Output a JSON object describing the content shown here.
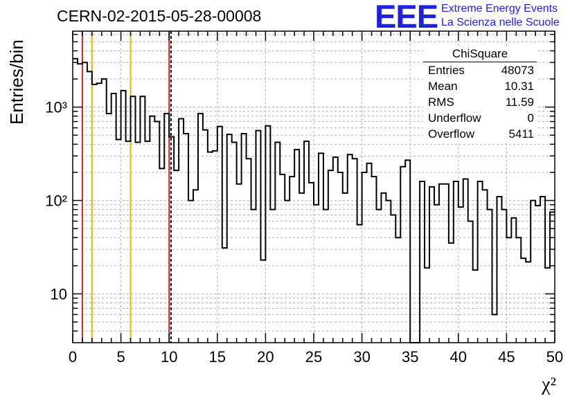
{
  "header": {
    "title": "CERN-02-2015-05-28-00008",
    "logo_text": "EEE",
    "logo_line1": "Extreme Energy Events",
    "logo_line2": "La Scienza nelle Scuole"
  },
  "stats_box": {
    "title": "ChiSquare",
    "rows": [
      {
        "label": "Entries",
        "value": "48073"
      },
      {
        "label": "Mean",
        "value": "10.31"
      },
      {
        "label": "RMS",
        "value": "11.59"
      },
      {
        "label": "Underflow",
        "value": "0"
      },
      {
        "label": "Overflow",
        "value": "5411"
      }
    ]
  },
  "colors": {
    "line": "#000000",
    "red_marker": "#e0201c",
    "orange_marker": "#f0b400",
    "grid": "#b0b0b0"
  },
  "chart_data": {
    "type": "histogram",
    "title": "CERN-02-2015-05-28-00008",
    "xlabel": "χ²",
    "ylabel": "Entries/bin",
    "yscale": "log",
    "xlim": [
      0,
      50
    ],
    "ylim": [
      3,
      6500
    ],
    "bin_width": 0.5,
    "bin_start": 0,
    "x_ticks": [
      0,
      5,
      10,
      15,
      20,
      25,
      30,
      35,
      40,
      45,
      50
    ],
    "y_tick_labels": [
      {
        "value": 10,
        "label": "10"
      },
      {
        "value": 100,
        "label": "10²"
      },
      {
        "value": 1000,
        "label": "10³"
      }
    ],
    "vertical_markers": [
      {
        "x": 1,
        "color": "red",
        "style": "solid"
      },
      {
        "x": 2,
        "color": "orange",
        "style": "solid"
      },
      {
        "x": 6,
        "color": "orange",
        "style": "solid"
      },
      {
        "x": 10,
        "color": "red",
        "style": "solid"
      },
      {
        "x": 10.2,
        "color": "black",
        "style": "dashed"
      }
    ],
    "bin_values": [
      3300,
      2900,
      3000,
      2400,
      1750,
      1800,
      2000,
      850,
      1400,
      450,
      1500,
      430,
      1300,
      420,
      1300,
      430,
      800,
      700,
      220,
      850,
      480,
      210,
      750,
      520,
      100,
      130,
      850,
      570,
      330,
      340,
      620,
      31,
      510,
      420,
      150,
      520,
      280,
      80,
      560,
      23,
      630,
      80,
      420,
      190,
      100,
      180,
      350,
      120,
      430,
      155,
      90,
      320,
      80,
      210,
      290,
      200,
      120,
      310,
      280,
      55,
      200,
      250,
      180,
      80,
      120,
      100,
      70,
      40,
      230,
      270,
      3,
      3,
      160,
      19,
      140,
      90,
      150,
      150,
      35,
      160,
      85,
      170,
      60,
      18,
      160,
      130,
      80,
      6,
      110,
      80,
      40,
      65,
      40,
      24,
      22,
      100,
      88,
      110,
      19,
      75
    ]
  }
}
